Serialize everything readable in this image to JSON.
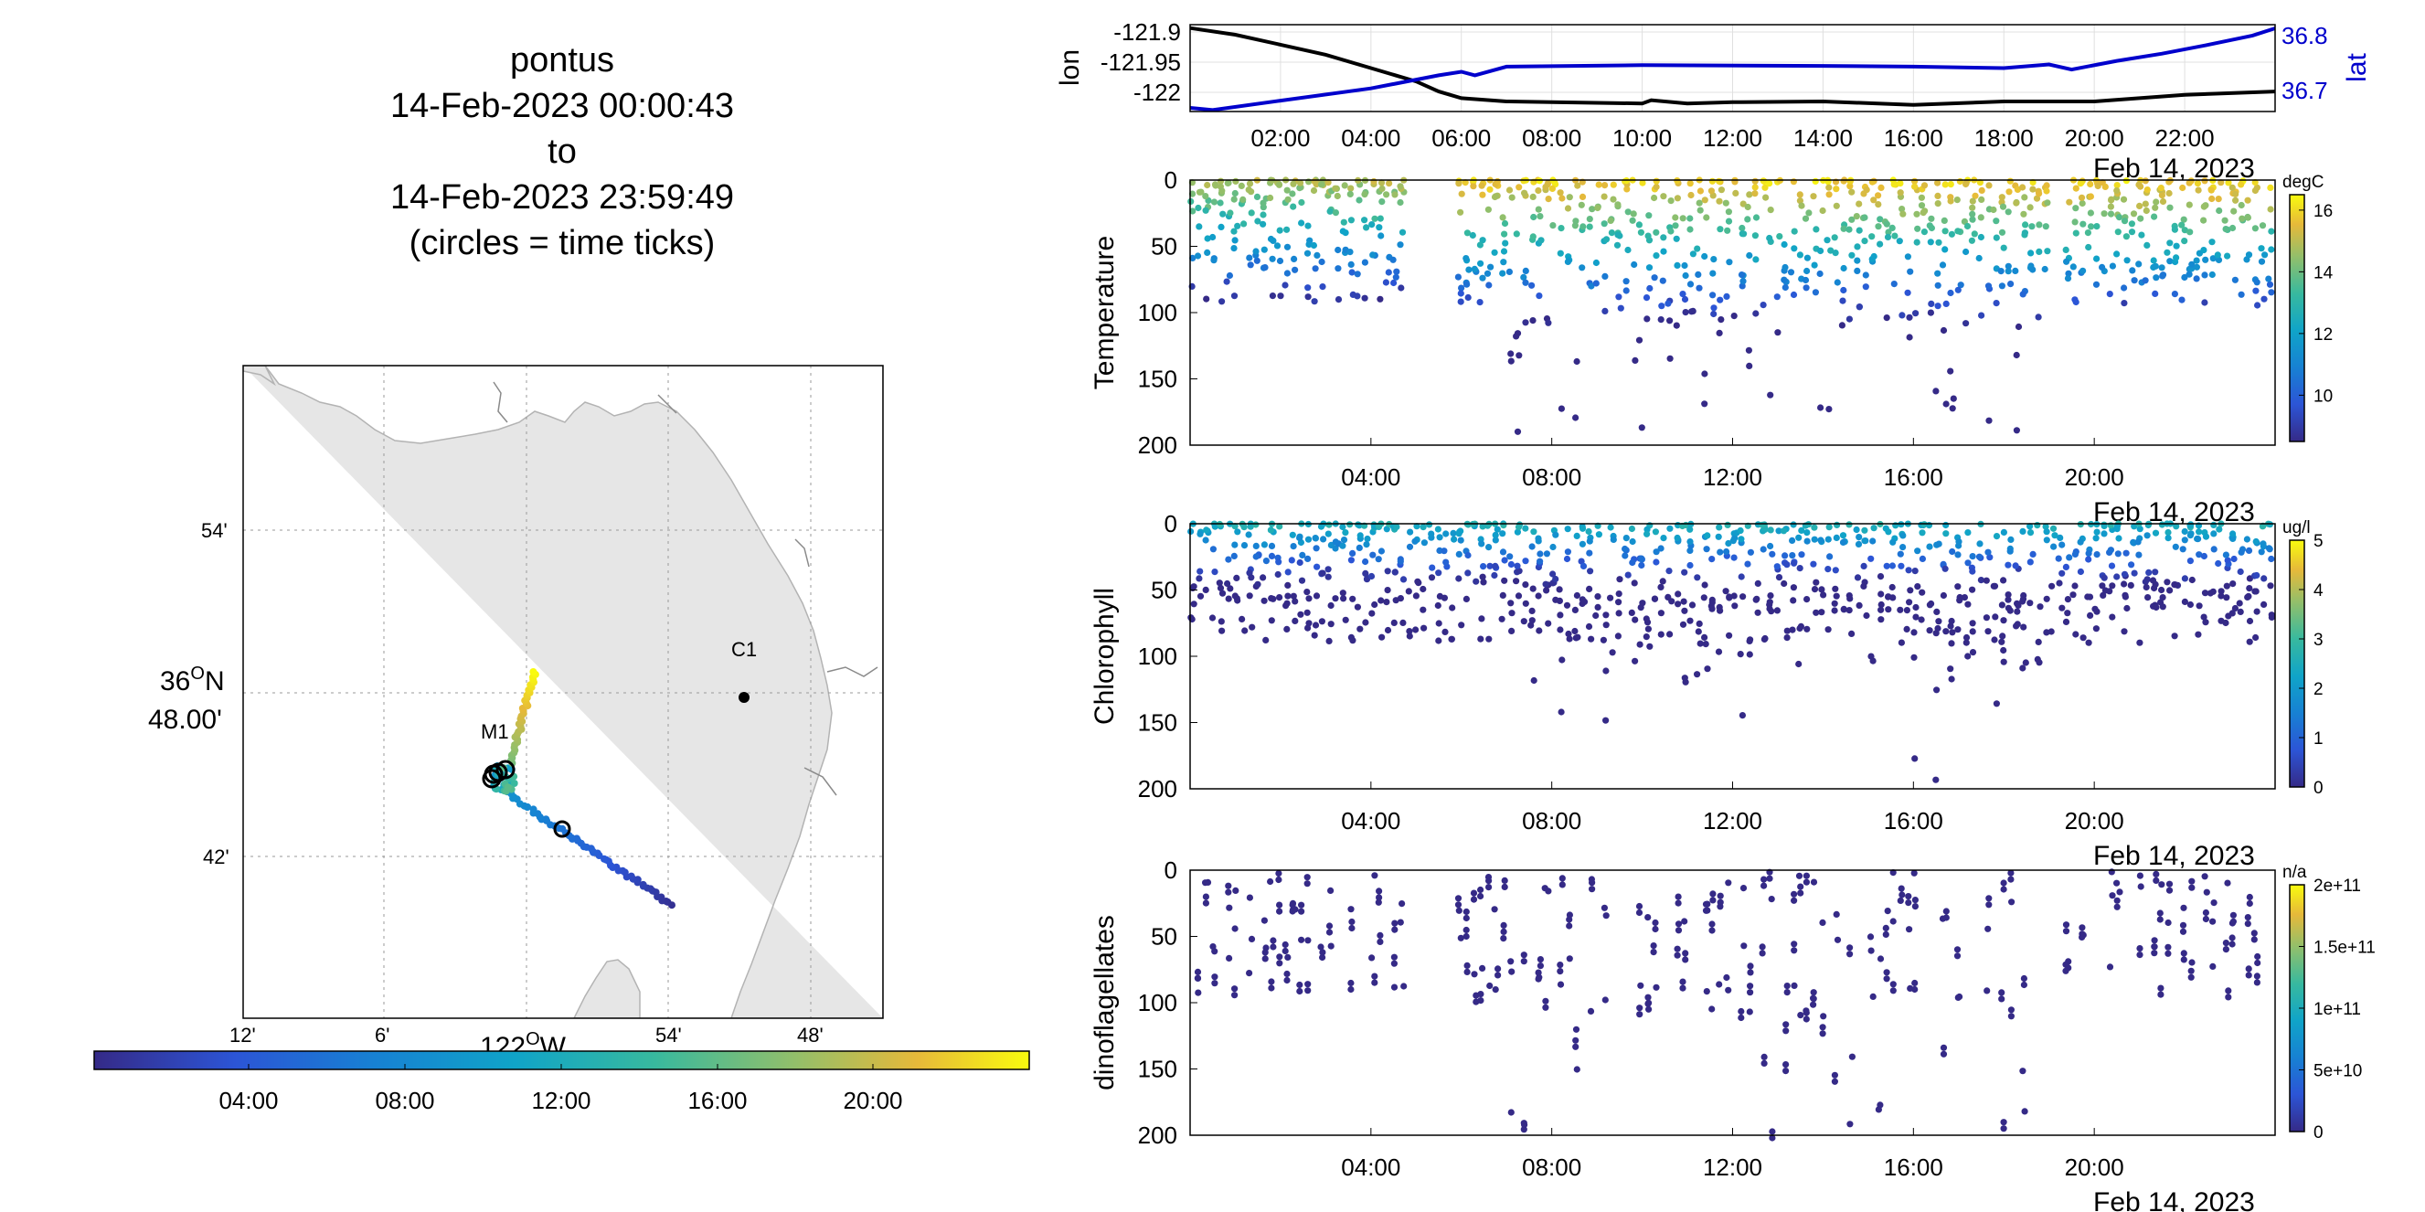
{
  "title": {
    "lines": [
      "pontus",
      "14-Feb-2023 00:00:43",
      "to",
      "14-Feb-2023 23:59:49",
      "(circles = time ticks)"
    ]
  },
  "map": {
    "lat_ticks": [
      "54'",
      "36",
      "48.00'",
      "42'"
    ],
    "lon_ticks": [
      "12'",
      "6'",
      "122",
      "W",
      "54'",
      "48'"
    ],
    "deg_symbol": "O",
    "north": "N",
    "stations": [
      {
        "label": "M1"
      },
      {
        "label": "C1"
      }
    ],
    "colorbar_ticks": [
      "04:00",
      "08:00",
      "12:00",
      "16:00",
      "20:00"
    ],
    "land_color": "#e6e6e6",
    "track_colormap": "parula"
  },
  "chart_data": [
    {
      "type": "line",
      "name": "position",
      "xlabel": "Feb 14, 2023",
      "x_ticks": [
        "02:00",
        "04:00",
        "06:00",
        "08:00",
        "10:00",
        "12:00",
        "14:00",
        "16:00",
        "18:00",
        "20:00",
        "22:00"
      ],
      "grid": true,
      "left_axis": {
        "label": "lon",
        "ticks": [
          "-121.9",
          "-121.95",
          "-122"
        ],
        "ylim": [
          -122.02,
          -121.89
        ]
      },
      "right_axis": {
        "label": "lat",
        "ticks": [
          "36.8",
          "36.7"
        ],
        "ylim": [
          36.69,
          36.81
        ],
        "color": "#0000cc"
      },
      "series": [
        {
          "name": "lon",
          "color": "#000000",
          "axis": "left",
          "x_hours": [
            0,
            1,
            2,
            3,
            4,
            5,
            5.5,
            6,
            7,
            8,
            10,
            10.2,
            11,
            12,
            14,
            16,
            18,
            20,
            22,
            24
          ],
          "values": [
            -121.895,
            -121.905,
            -121.92,
            -121.935,
            -121.955,
            -121.975,
            -121.99,
            -122.0,
            -122.005,
            -122.006,
            -122.008,
            -122.003,
            -122.008,
            -122.006,
            -122.005,
            -122.01,
            -122.005,
            -122.005,
            -121.995,
            -121.99
          ]
        },
        {
          "name": "lat",
          "color": "#0000cc",
          "axis": "right",
          "x_hours": [
            0,
            0.5,
            2,
            4,
            5.5,
            6,
            6.3,
            7,
            10,
            14,
            16,
            18,
            19,
            19.5,
            20.5,
            21.5,
            22.5,
            23.5,
            24
          ],
          "values": [
            36.695,
            36.692,
            36.705,
            36.722,
            36.74,
            36.745,
            36.74,
            36.752,
            36.754,
            36.753,
            36.752,
            36.75,
            36.755,
            36.748,
            36.76,
            36.77,
            36.782,
            36.795,
            36.805
          ]
        }
      ]
    },
    {
      "type": "scatter",
      "name": "Temperature",
      "ylabel": "Temperature",
      "units": "degC",
      "y_ticks": [
        "0",
        "50",
        "100",
        "150",
        "200"
      ],
      "ylim": [
        0,
        200
      ],
      "y_reversed": true,
      "x_ticks": [
        "04:00",
        "08:00",
        "12:00",
        "16:00",
        "20:00"
      ],
      "date_label": "Feb 14, 2023",
      "colorbar": {
        "ticks": [
          "16",
          "14",
          "12",
          "10"
        ],
        "range": [
          8.5,
          16.5
        ]
      }
    },
    {
      "type": "scatter",
      "name": "Chlorophyll",
      "ylabel": "Chlorophyll",
      "units": "ug/l",
      "y_ticks": [
        "0",
        "50",
        "100",
        "150",
        "200"
      ],
      "ylim": [
        0,
        200
      ],
      "y_reversed": true,
      "x_ticks": [
        "04:00",
        "08:00",
        "12:00",
        "16:00",
        "20:00"
      ],
      "date_label": "Feb 14, 2023",
      "colorbar": {
        "ticks": [
          "5",
          "4",
          "3",
          "2",
          "1",
          "0"
        ],
        "range": [
          0,
          5
        ]
      }
    },
    {
      "type": "scatter",
      "name": "dinoflagellates",
      "ylabel": "dinoflagellates",
      "units": "n/a",
      "y_ticks": [
        "0",
        "50",
        "100",
        "150",
        "200"
      ],
      "ylim": [
        0,
        200
      ],
      "y_reversed": true,
      "x_ticks": [
        "04:00",
        "08:00",
        "12:00",
        "16:00",
        "20:00"
      ],
      "date_label": "Feb 14, 2023",
      "colorbar": {
        "ticks": [
          "2e+11",
          "1.5e+11",
          "1e+11",
          "5e+10",
          "0"
        ],
        "range": [
          0,
          200000000000.0
        ]
      }
    }
  ]
}
